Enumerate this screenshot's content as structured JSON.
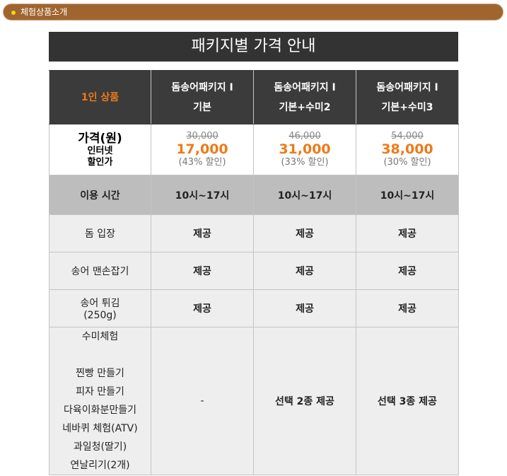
{
  "topbar": {
    "label": "체험상품소개"
  },
  "title": "패키지별 가격 안내",
  "header": {
    "first": "1인 상품",
    "packages": [
      {
        "line1": "돔송어패키지 I",
        "line2": "기본"
      },
      {
        "line1": "돔송어패키지 I",
        "line2": "기본+수미2"
      },
      {
        "line1": "돔송어패키지 I",
        "line2": "기본+수미3"
      }
    ]
  },
  "price": {
    "label": "가격(원)",
    "sub1": "인터넷",
    "sub2": "할인가",
    "items": [
      {
        "old": "30,000",
        "new": "17,000",
        "discount": "(43% 할인)"
      },
      {
        "old": "46,000",
        "new": "31,000",
        "discount": "(33% 할인)"
      },
      {
        "old": "54,000",
        "new": "38,000",
        "discount": "(30% 할인)"
      }
    ]
  },
  "time": {
    "label": "이용 시간",
    "values": [
      "10시~17시",
      "10시~17시",
      "10시~17시"
    ]
  },
  "dome": {
    "label": "돔 입장",
    "values": [
      "제공",
      "제공",
      "제공"
    ]
  },
  "catch": {
    "label": "송어 맨손잡기",
    "values": [
      "제공",
      "제공",
      "제공"
    ]
  },
  "fry": {
    "label1": "송어 튀김",
    "label2": "(250g)",
    "values": [
      "제공",
      "제공",
      "제공"
    ]
  },
  "sumi": {
    "title": "수미체험",
    "items": [
      "찐빵 만들기",
      "피자 만들기",
      "다육이화분만들기",
      "네바퀴 체험(ATV)",
      "과일청(딸기)",
      "연날리기(2개)"
    ],
    "values": [
      "-",
      "선택 2종 제공",
      "선택 3종 제공"
    ]
  }
}
